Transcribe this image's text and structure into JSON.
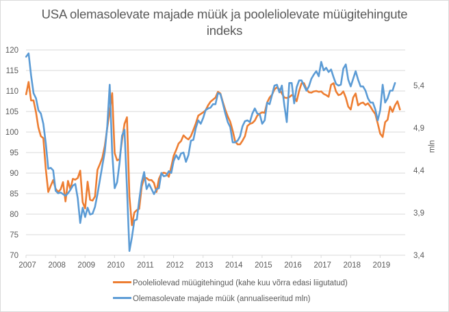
{
  "chart_data": {
    "type": "line",
    "title": "USA olemasolevate majade müük ja pooleliolevate müügitehingute indeks",
    "title_lines": [
      "USA olemasolevate majade müük ja pooleliolevate müügitehingute",
      "indeks"
    ],
    "xlabel": "",
    "ylabel": "",
    "y2label": "mln",
    "x_start": "2007-01",
    "x_frequency": "monthly",
    "x_ticks": [
      "2007",
      "2008",
      "2009",
      "2010",
      "2011",
      "2012",
      "2013",
      "2014",
      "2015",
      "2016",
      "2017",
      "2018",
      "2019"
    ],
    "xlim": [
      2007.0,
      2019.85
    ],
    "ylim": [
      70,
      120
    ],
    "y_ticks": [
      "70",
      "75",
      "80",
      "85",
      "90",
      "95",
      "100",
      "105",
      "110",
      "115",
      "120"
    ],
    "y2lim": [
      3.4,
      5.82
    ],
    "y2_ticks": [
      "3,4",
      "3,9",
      "4,4",
      "4,9",
      "5,4"
    ],
    "grid": true,
    "legend_position": "bottom",
    "series": [
      {
        "name": "Pooleliolevad müügitehingud (kahe kuu võrra edasi liigutatud)",
        "axis": "left",
        "color": "#ED7D31",
        "values": [
          109.2,
          112.2,
          107.7,
          107.7,
          104.8,
          101.1,
          99.0,
          98.5,
          91.0,
          85.4,
          86.9,
          88.3,
          86.2,
          85.4,
          86.0,
          87.8,
          83.1,
          88.1,
          86.1,
          88.6,
          88.4,
          88.8,
          90.6,
          82.9,
          81.4,
          87.9,
          83.5,
          83.3,
          84.3,
          90.8,
          92.2,
          93.8,
          96.6,
          101.0,
          105.1,
          109.5,
          94.9,
          93.1,
          93.4,
          98.0,
          102.0,
          103.6,
          84.3,
          77.3,
          80.4,
          81.0,
          81.3,
          86.7,
          88.8,
          88.8,
          88.3,
          88.3,
          87.6,
          85.4,
          88.6,
          89.9,
          90.1,
          89.9,
          89.1,
          91.5,
          94.2,
          95.6,
          97.2,
          97.8,
          99.2,
          98.6,
          98.2,
          99.0,
          100.5,
          102.1,
          104.0,
          104.4,
          104.8,
          105.3,
          106.5,
          107.4,
          107.9,
          108.4,
          109.8,
          109.4,
          107.3,
          105.4,
          103.8,
          102.5,
          100.3,
          97.7,
          97.0,
          97.0,
          97.9,
          99.0,
          101.5,
          102.0,
          102.2,
          102.8,
          104.0,
          104.5,
          104.8,
          104.7,
          107.2,
          108.4,
          109.1,
          110.4,
          110.9,
          110.4,
          109.4,
          108.4,
          108.3,
          108.5,
          109.0,
          108.7,
          107.5,
          110.0,
          111.9,
          111.9,
          110.4,
          109.7,
          109.6,
          109.9,
          110.0,
          109.8,
          109.9,
          109.3,
          109.0,
          108.6,
          111.5,
          111.9,
          109.9,
          109.0,
          109.2,
          109.9,
          108.4,
          106.2,
          105.5,
          108.4,
          109.4,
          106.5,
          107.0,
          107.2,
          106.6,
          107.0,
          106.2,
          105.2,
          104.4,
          102.1,
          99.6,
          98.8,
          102.4,
          103.0,
          106.2,
          104.9,
          106.5,
          107.5,
          105.5
        ]
      },
      {
        "name": "Olemasolevate majade müük (annualiseeritud mln)",
        "axis": "right",
        "color": "#5B9BD5",
        "values": [
          5.74,
          5.78,
          5.52,
          5.31,
          5.25,
          5.11,
          5.07,
          4.95,
          4.72,
          4.42,
          4.43,
          4.4,
          4.16,
          4.13,
          4.14,
          4.12,
          4.1,
          4.13,
          4.17,
          4.22,
          4.24,
          4.07,
          3.78,
          3.96,
          3.85,
          3.96,
          3.88,
          3.89,
          3.97,
          4.12,
          4.29,
          4.46,
          4.62,
          4.92,
          5.41,
          4.61,
          4.19,
          4.26,
          4.49,
          4.81,
          4.88,
          4.19,
          3.45,
          3.61,
          3.81,
          3.82,
          4.05,
          4.26,
          4.38,
          4.18,
          4.24,
          4.18,
          4.12,
          4.18,
          4.19,
          4.37,
          4.33,
          4.34,
          4.39,
          4.37,
          4.51,
          4.58,
          4.53,
          4.6,
          4.61,
          4.5,
          4.58,
          4.75,
          4.76,
          4.9,
          4.99,
          4.95,
          5.02,
          5.11,
          5.13,
          5.14,
          5.18,
          5.18,
          5.31,
          5.3,
          5.19,
          5.07,
          4.97,
          4.91,
          4.73,
          4.73,
          4.75,
          4.8,
          4.92,
          4.98,
          4.99,
          4.97,
          5.07,
          5.13,
          5.07,
          5.06,
          4.95,
          4.99,
          5.2,
          5.18,
          5.29,
          5.4,
          5.41,
          5.32,
          5.4,
          5.17,
          4.97,
          5.43,
          5.43,
          5.19,
          5.38,
          5.46,
          5.46,
          5.4,
          5.34,
          5.39,
          5.48,
          5.53,
          5.57,
          5.51,
          5.68,
          5.58,
          5.61,
          5.56,
          5.59,
          5.5,
          5.42,
          5.4,
          5.41,
          5.6,
          5.65,
          5.47,
          5.39,
          5.48,
          5.57,
          5.47,
          5.39,
          5.39,
          5.34,
          5.25,
          5.2,
          5.2,
          5.12,
          4.99,
          5.11,
          5.41,
          5.2,
          5.25,
          5.34,
          5.34,
          5.43
        ]
      }
    ]
  }
}
